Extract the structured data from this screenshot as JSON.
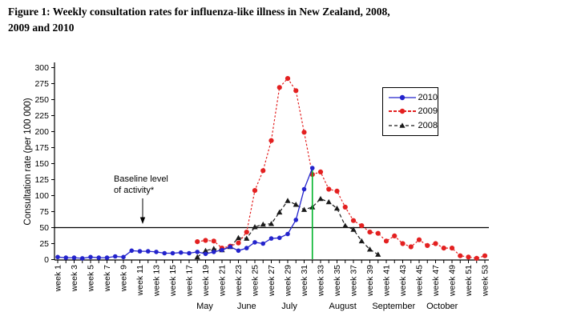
{
  "title": {
    "line1": "Figure 1: Weekly consultation rates for influenza-like illness in New Zealand, 2008,",
    "line2": "2009 and 2010"
  },
  "chart_data": {
    "type": "line",
    "ylabel": "Consultation rate (per 100 000)",
    "ylim": [
      0,
      300
    ],
    "ytick_interval": 25,
    "week_range": [
      1,
      53
    ],
    "xtick_labels": [
      "week 1",
      "week 3",
      "week 5",
      "week 7",
      "week 9",
      "week 11",
      "week 13",
      "week 15",
      "week 17",
      "week 19",
      "week 21",
      "week 23",
      "week 25",
      "week 27",
      "week 29",
      "week 31",
      "week 33",
      "week 35",
      "week 37",
      "week 39",
      "week 41",
      "week 43",
      "week 45",
      "week 47",
      "week 49",
      "week 51",
      "week 53"
    ],
    "months": [
      {
        "label": "May",
        "week": 18.9
      },
      {
        "label": "June",
        "week": 24.0
      },
      {
        "label": "July",
        "week": 29.2
      },
      {
        "label": "August",
        "week": 35.7
      },
      {
        "label": "September",
        "week": 41.9
      },
      {
        "label": "October",
        "week": 47.8
      }
    ],
    "baseline": {
      "value": 50,
      "label_line1": "Baseline level",
      "label_line2": "of activity*"
    },
    "event_line": {
      "week": 32,
      "value": 143,
      "color": "#00b32b"
    },
    "legend_position": "upper right",
    "grid": "off",
    "series": [
      {
        "name": "2010",
        "color": "#2323cc",
        "line": "solid",
        "marker": "circle",
        "start_week": 1,
        "values": [
          4,
          3,
          3,
          2,
          4,
          3,
          3,
          5,
          4,
          14,
          13,
          13,
          12,
          10,
          10,
          11,
          10,
          12,
          9,
          12,
          15,
          20,
          14,
          18,
          27,
          25,
          33,
          34,
          40,
          62,
          110,
          143
        ]
      },
      {
        "name": "2009",
        "color": "#e32020",
        "line": "dotted",
        "marker": "circle",
        "start_week": 18,
        "values": [
          28,
          30,
          29,
          18,
          21,
          26,
          43,
          108,
          139,
          186,
          269,
          283,
          264,
          199,
          133,
          137,
          110,
          107,
          82,
          61,
          53,
          43,
          41,
          29,
          37,
          25,
          20,
          31,
          22,
          25,
          18,
          18,
          6,
          4,
          2,
          6
        ]
      },
      {
        "name": "2008",
        "color": "#1a1a1a",
        "line": "dashed",
        "marker": "triangle",
        "start_week": 18,
        "values": [
          4,
          14,
          17,
          15,
          20,
          34,
          33,
          51,
          55,
          56,
          74,
          92,
          86,
          78,
          82,
          95,
          90,
          80,
          53,
          47,
          29,
          16,
          8
        ]
      }
    ]
  }
}
